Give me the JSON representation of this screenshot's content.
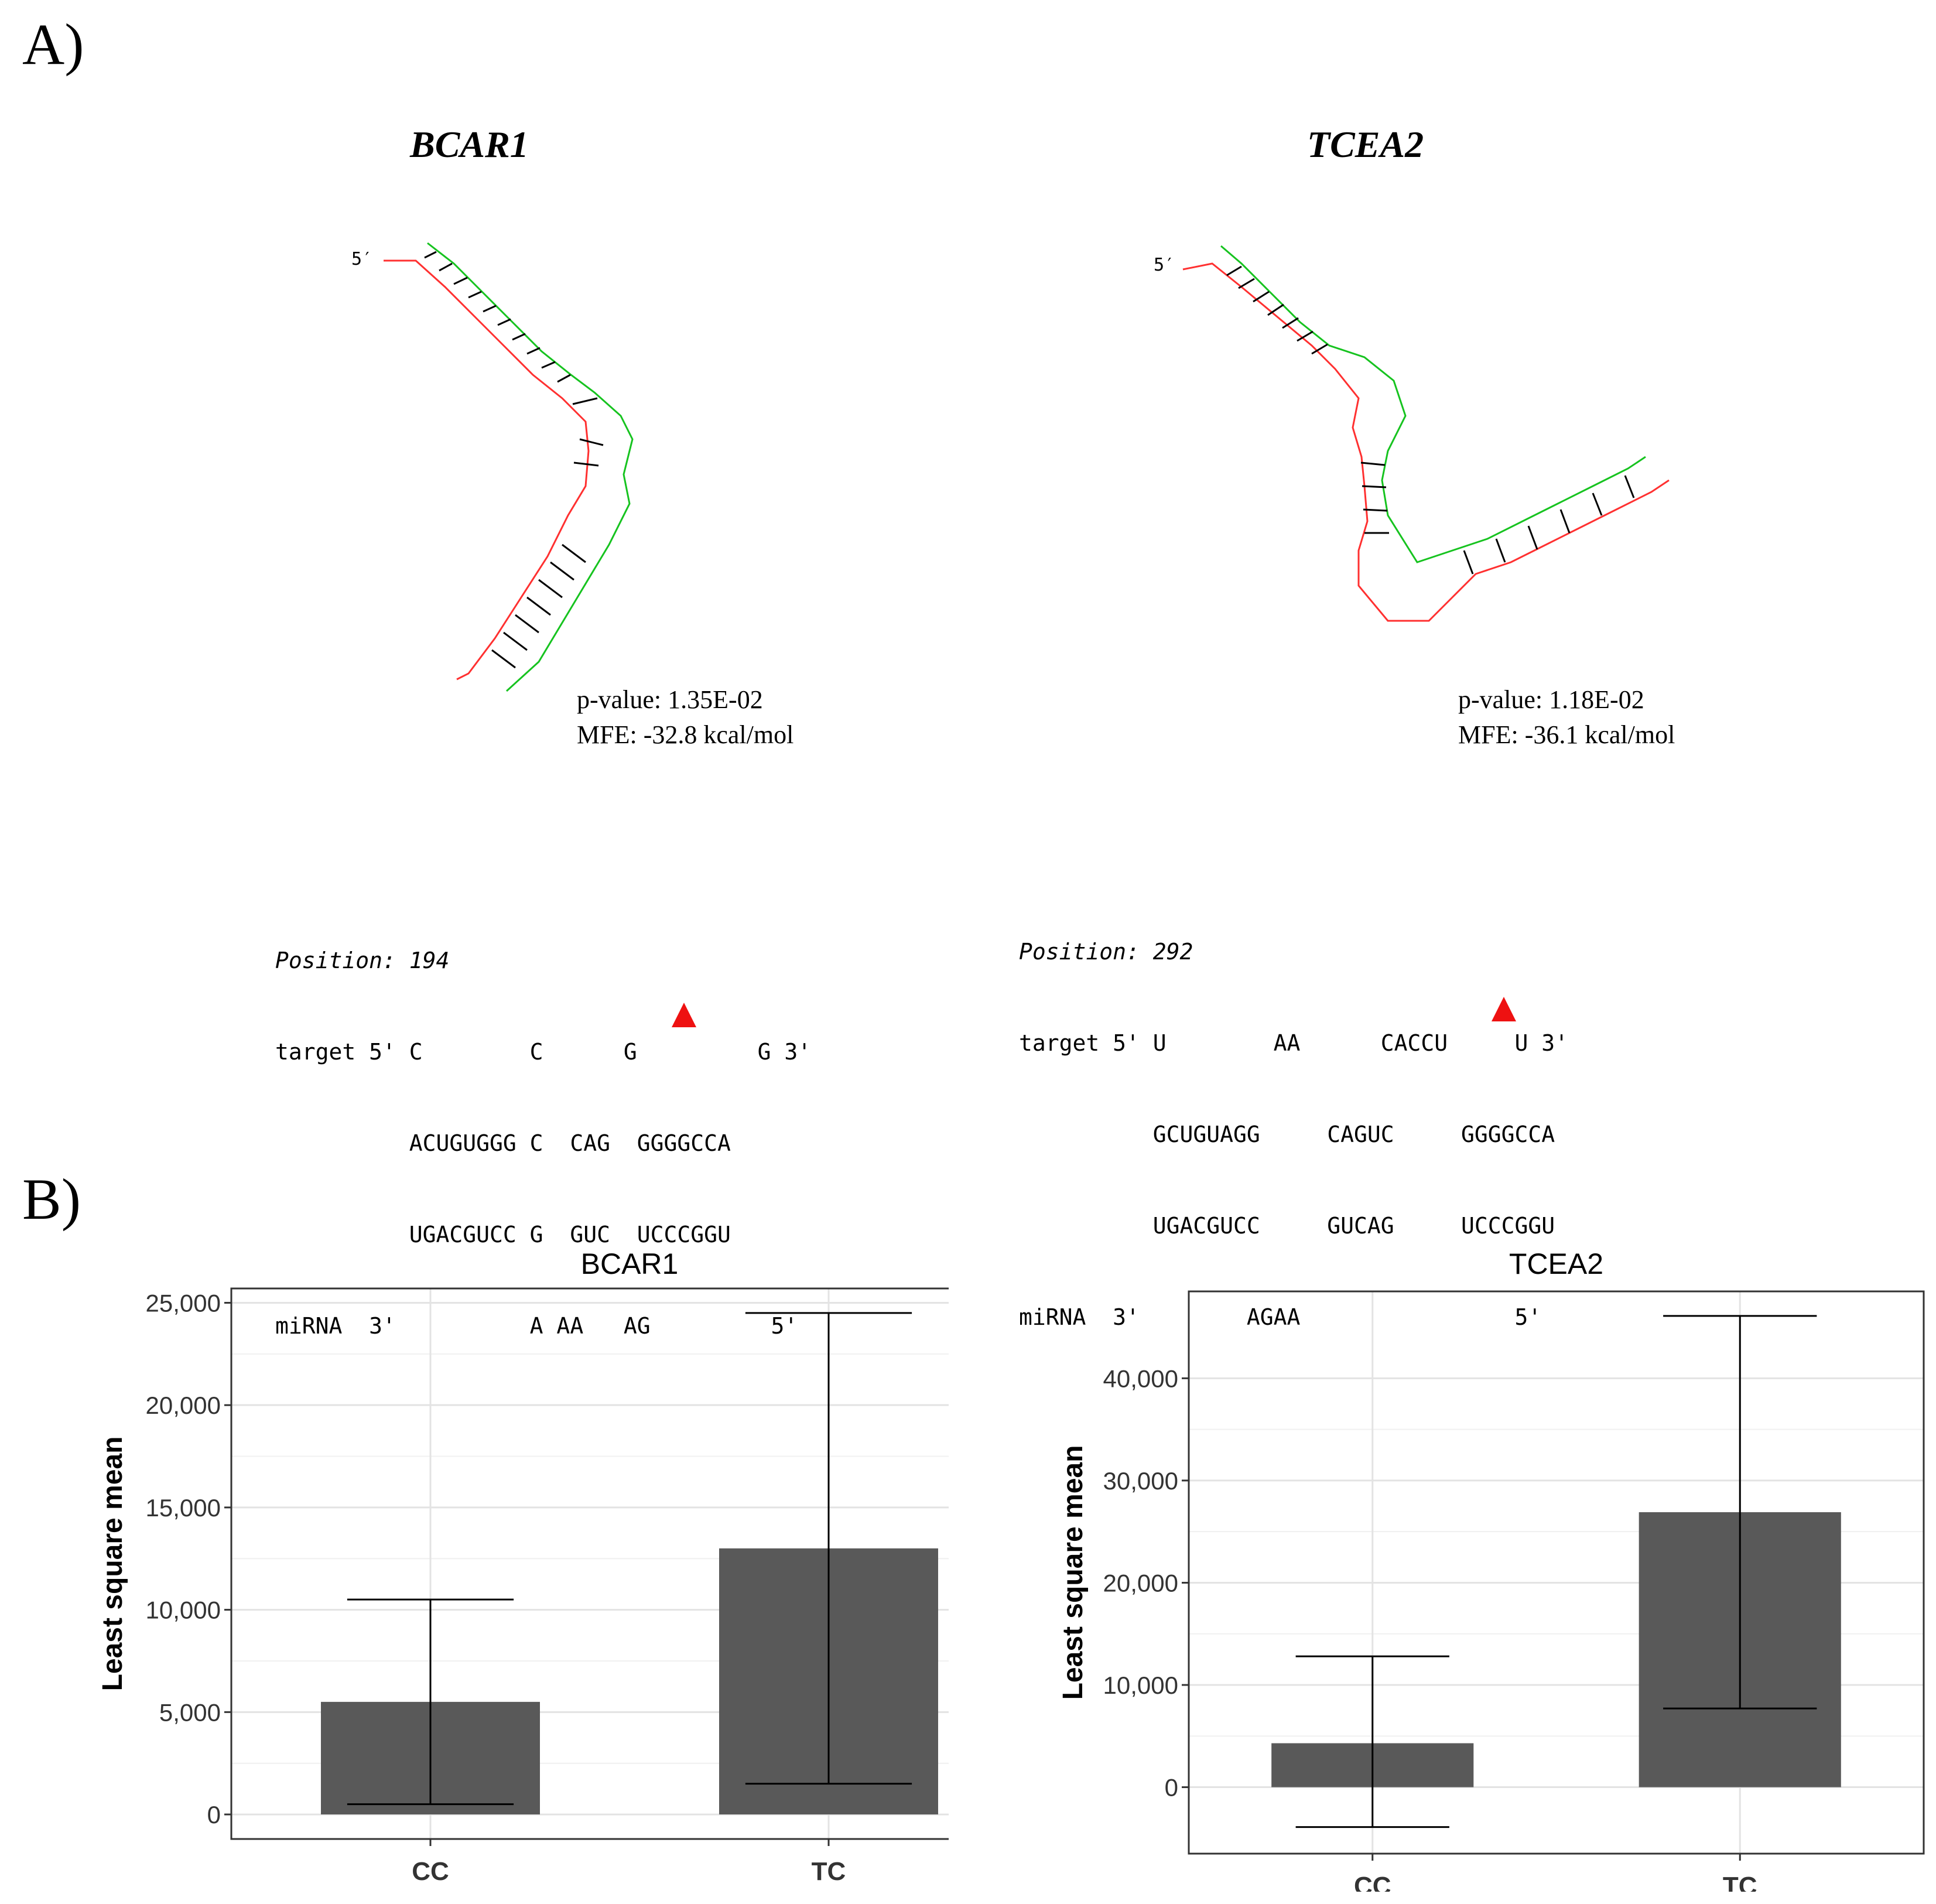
{
  "panels": {
    "a_label": "A)",
    "b_label": "B)"
  },
  "structures": [
    {
      "gene": "BCAR1",
      "five_prime": "5′",
      "pvalue": "p-value: 1.35E-02",
      "mfe": "MFE: -32.8 kcal/mol",
      "target_color": "#ff3030",
      "mirna_color": "#16c31f",
      "alignment": {
        "position": "Position: 194",
        "line1": "target 5' C        C      G         G 3'",
        "line2": "          ACUGUGGG C  CAG  GGGGCCA",
        "line3": "          UGACGUCC G  GUC  UCCCGGU",
        "line4": "miRNA  3'          A AA   AG         5'"
      }
    },
    {
      "gene": "TCEA2",
      "five_prime": "5′",
      "pvalue": "p-value: 1.18E-02",
      "mfe": "MFE: -36.1 kcal/mol",
      "target_color": "#ff3030",
      "mirna_color": "#16c31f",
      "alignment": {
        "position": "Position: 292",
        "line1": "target 5' U        AA      CACCU     U 3'",
        "line2": "          GCUGUAGG     CAGUC     GGGGCCA",
        "line3": "          UGACGUCC     GUCAG     UCCCGGU",
        "line4": "miRNA  3'        AGAA                5'"
      }
    }
  ],
  "marker_color": "#ee1111",
  "chart_data": [
    {
      "type": "bar",
      "title": "BCAR1",
      "xlabel": "",
      "ylabel": "Least square mean",
      "categories": [
        "CC",
        "TC"
      ],
      "values": [
        5500,
        13000
      ],
      "error_low": [
        500,
        1500
      ],
      "error_high": [
        10500,
        24500
      ],
      "ylim": [
        -1200,
        25700
      ],
      "yticks": [
        0,
        5000,
        10000,
        15000,
        20000,
        25000
      ],
      "ytick_labels": [
        "0",
        "5,000",
        "10,000",
        "15,000",
        "20,000",
        "25,000"
      ],
      "bar_color": "#595959",
      "grid": true
    },
    {
      "type": "bar",
      "title": "TCEA2",
      "xlabel": "",
      "ylabel": "Least square mean",
      "categories": [
        "CC",
        "TC"
      ],
      "values": [
        4300,
        26900
      ],
      "error_low": [
        -3900,
        7700
      ],
      "error_high": [
        12800,
        46100
      ],
      "ylim": [
        -6500,
        48500
      ],
      "yticks": [
        0,
        10000,
        20000,
        30000,
        40000
      ],
      "ytick_labels": [
        "0",
        "10,000",
        "20,000",
        "30,000",
        "40,000"
      ],
      "bar_color": "#595959",
      "grid": true
    }
  ]
}
